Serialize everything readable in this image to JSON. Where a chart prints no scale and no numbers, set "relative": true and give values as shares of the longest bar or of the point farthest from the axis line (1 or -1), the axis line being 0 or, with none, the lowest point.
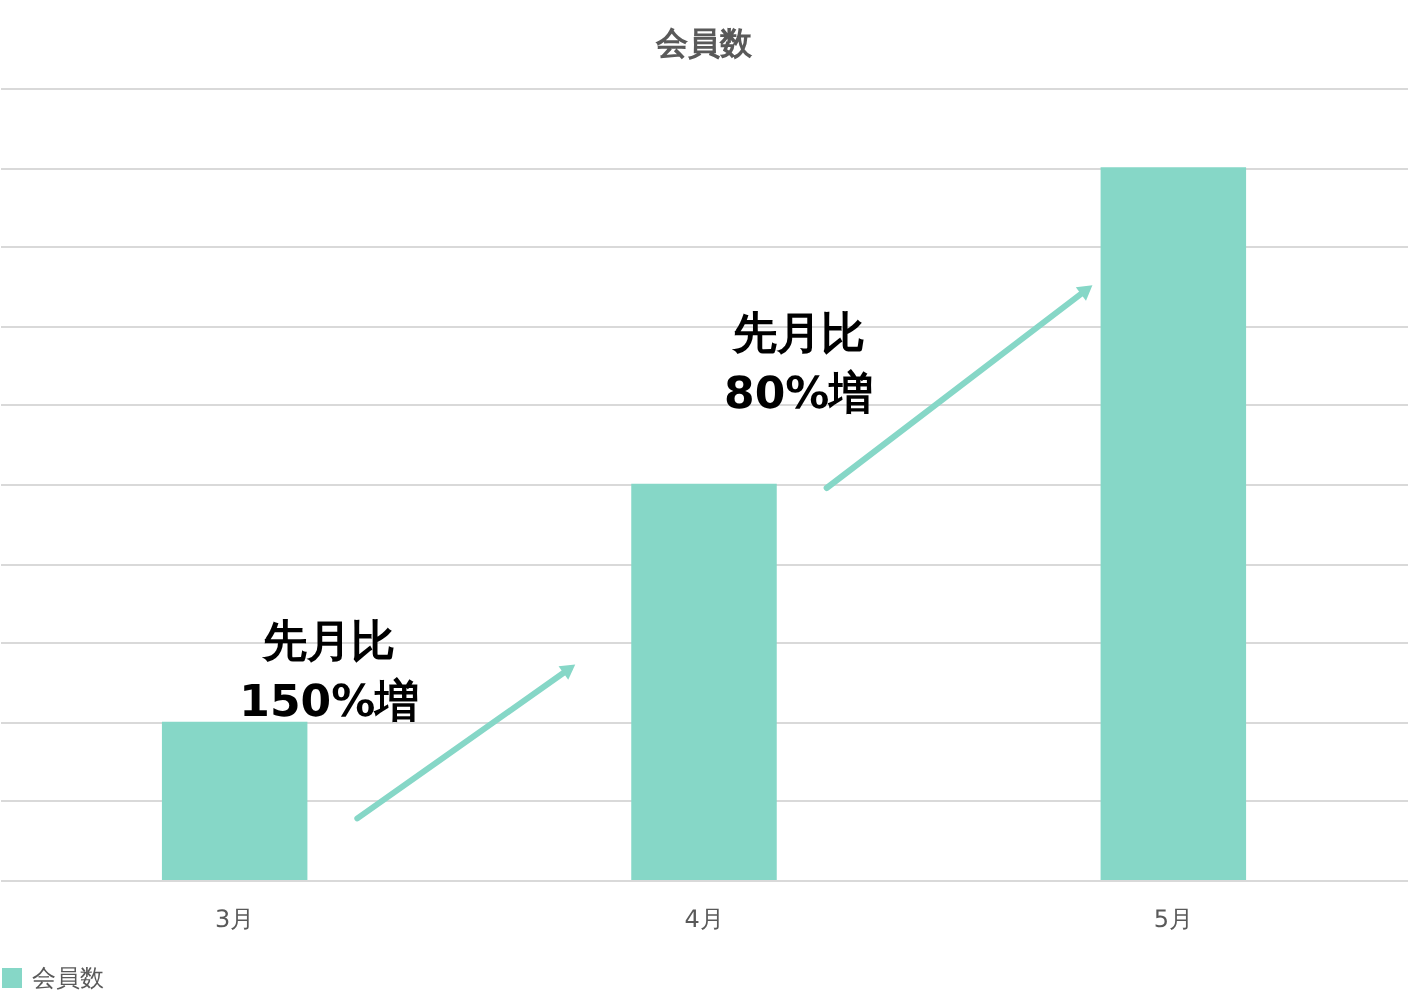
{
  "chart_data": {
    "type": "bar",
    "title": "会員数",
    "relative": true,
    "categories": [
      "3月",
      "4月",
      "5月"
    ],
    "series": [
      {
        "name": "会員数",
        "color": "#86d7c7",
        "values": [
          0.222,
          0.556,
          1
        ]
      }
    ],
    "annotations": [
      "先月比\n150%増",
      "先月比\n80%増"
    ],
    "grid": "y",
    "legend": "bottom"
  }
}
